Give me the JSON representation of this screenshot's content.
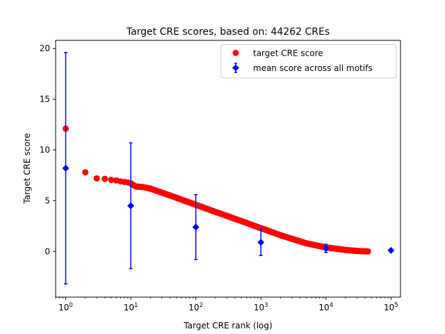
{
  "chart_data": {
    "type": "scatter",
    "title": "Target CRE scores, based on: 44262 CREs",
    "xlabel": "Target CRE rank (log)",
    "ylabel": "Target CRE score",
    "xscale": "log",
    "xlim": [
      0.7,
      140000
    ],
    "ylim": [
      -4.5,
      20.8
    ],
    "x_ticks": [
      {
        "value": 1,
        "base": "10",
        "exp": "0"
      },
      {
        "value": 10,
        "base": "10",
        "exp": "1"
      },
      {
        "value": 100,
        "base": "10",
        "exp": "2"
      },
      {
        "value": 1000,
        "base": "10",
        "exp": "3"
      },
      {
        "value": 10000,
        "base": "10",
        "exp": "4"
      },
      {
        "value": 100000,
        "base": "10",
        "exp": "5"
      }
    ],
    "y_ticks": [
      {
        "value": 0,
        "label": "0"
      },
      {
        "value": 5,
        "label": "5"
      },
      {
        "value": 10,
        "label": "10"
      },
      {
        "value": 15,
        "label": "15"
      },
      {
        "value": 20,
        "label": "20"
      }
    ],
    "grid": false,
    "legend_position": "top-right",
    "series": [
      {
        "name": "target CRE score",
        "marker": "circle",
        "color": "#ff0000",
        "x": [
          1,
          2,
          3,
          4,
          5,
          6,
          7,
          8,
          9,
          10,
          12,
          15,
          20,
          30,
          50,
          100,
          200,
          500,
          1000,
          2000,
          5000,
          10000,
          20000,
          30000,
          44262
        ],
        "y": [
          12.1,
          7.8,
          7.2,
          7.15,
          7.05,
          7.0,
          6.9,
          6.85,
          6.8,
          6.7,
          6.4,
          6.35,
          6.2,
          5.8,
          5.3,
          4.6,
          3.9,
          3.0,
          2.3,
          1.6,
          0.8,
          0.4,
          0.15,
          0.05,
          0.0
        ]
      },
      {
        "name": "mean score across all motifs",
        "marker": "diamond",
        "color": "#0000ff",
        "x": [
          1,
          10,
          100,
          1000,
          10000,
          100000
        ],
        "y": [
          8.2,
          4.5,
          2.4,
          0.9,
          0.3,
          0.1
        ],
        "yerr": [
          11.4,
          6.2,
          3.2,
          1.3,
          0.4,
          0.0
        ]
      }
    ]
  }
}
